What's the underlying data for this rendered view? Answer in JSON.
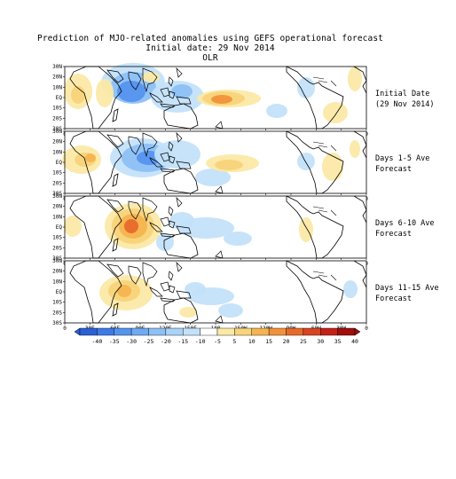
{
  "header": {
    "title": "Prediction of MJO-related anomalies using GEFS operational forecast",
    "subtitle": "Initial date: 29 Nov 2014",
    "field": "OLR"
  },
  "map": {
    "lat_ticks": [
      "30N",
      "20N",
      "10N",
      "EQ",
      "10S",
      "20S",
      "30S"
    ],
    "lon_ticks": [
      "0",
      "30E",
      "60E",
      "90E",
      "120E",
      "150E",
      "180",
      "150W",
      "120W",
      "90W",
      "60W",
      "30W",
      "0"
    ]
  },
  "panels": [
    {
      "id": "initial",
      "label_line1": "Initial Date",
      "label_line2": "(29 Nov 2014)"
    },
    {
      "id": "d1_5",
      "label_line1": "Days 1-5 Ave",
      "label_line2": "Forecast"
    },
    {
      "id": "d6_10",
      "label_line1": "Days 6-10 Ave",
      "label_line2": "Forecast"
    },
    {
      "id": "d11_15",
      "label_line1": "Days 11-15 Ave",
      "label_line2": "Forecast"
    }
  ],
  "colorbar": {
    "labels": [
      "-40",
      "-35",
      "-30",
      "-25",
      "-20",
      "-15",
      "-10",
      "-5",
      "5",
      "10",
      "15",
      "20",
      "25",
      "30",
      "35",
      "40"
    ],
    "colors": [
      "#2a5fd8",
      "#3d7ae8",
      "#5594ee",
      "#6faaf3",
      "#8dc0f6",
      "#a9d3f8",
      "#c3e2fa",
      "#ffffff",
      "#fbe9a6",
      "#f8d47a",
      "#f5b44f",
      "#f1923a",
      "#e86a2b",
      "#d94421",
      "#c42218",
      "#a00e0e"
    ]
  }
}
